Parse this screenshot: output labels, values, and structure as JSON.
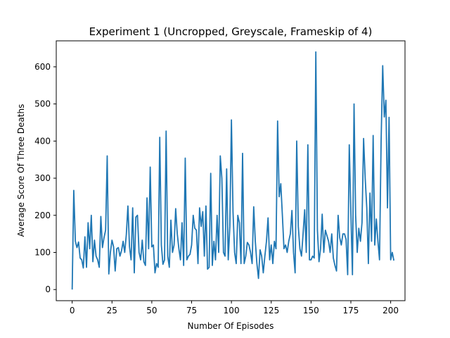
{
  "chart_data": {
    "type": "line",
    "title": "Experiment 1 (Uncropped, Greyscale, Frameskip of 4)",
    "xlabel": "Number Of Episodes",
    "ylabel": "Average Score Of Three Deaths",
    "xlim": [
      -10,
      209
    ],
    "ylim": [
      -30,
      670
    ],
    "xticks": [
      0,
      25,
      50,
      75,
      100,
      125,
      150,
      175,
      200
    ],
    "yticks": [
      0,
      100,
      200,
      300,
      400,
      500,
      600
    ],
    "xtick_labels": [
      "0",
      "25",
      "50",
      "75",
      "100",
      "125",
      "150",
      "175",
      "200"
    ],
    "ytick_labels": [
      "0",
      "100",
      "200",
      "300",
      "400",
      "500",
      "600"
    ],
    "grid": false,
    "line_color": "#1f77b4",
    "series": [
      {
        "values": [
          0,
          267,
          130,
          113,
          128,
          85,
          80,
          58,
          142,
          60,
          180,
          110,
          200,
          75,
          133,
          90,
          80,
          60,
          197,
          113,
          140,
          160,
          360,
          42,
          100,
          133,
          115,
          50,
          110,
          113,
          90,
          105,
          130,
          100,
          148,
          225,
          115,
          80,
          220,
          45,
          195,
          200,
          100,
          80,
          133,
          75,
          65,
          247,
          110,
          330,
          115,
          120,
          45,
          70,
          60,
          410,
          120,
          68,
          80,
          427,
          90,
          60,
          187,
          100,
          120,
          218,
          150,
          110,
          80,
          180,
          65,
          354,
          80,
          90,
          95,
          120,
          200,
          165,
          160,
          70,
          220,
          170,
          210,
          90,
          225,
          55,
          60,
          313,
          65,
          130,
          80,
          200,
          100,
          360,
          300,
          100,
          90,
          325,
          80,
          170,
          457,
          210,
          100,
          70,
          200,
          180,
          70,
          367,
          70,
          90,
          127,
          120,
          100,
          70,
          223,
          130,
          70,
          30,
          107,
          90,
          45,
          90,
          130,
          193,
          80,
          120,
          70,
          130,
          110,
          454,
          250,
          285,
          200,
          110,
          120,
          100,
          130,
          150,
          213,
          100,
          45,
          400,
          170,
          110,
          90,
          150,
          215,
          100,
          390,
          80,
          80,
          90,
          85,
          640,
          160,
          75,
          110,
          203,
          100,
          160,
          145,
          130,
          100,
          150,
          85,
          65,
          50,
          200,
          140,
          120,
          150,
          150,
          135,
          40,
          390,
          210,
          40,
          500,
          200,
          100,
          165,
          130,
          180,
          407,
          300,
          220,
          70,
          260,
          130,
          415,
          120,
          190,
          130,
          80,
          400,
          603,
          465,
          510,
          220,
          464,
          80,
          100,
          78
        ]
      }
    ]
  }
}
